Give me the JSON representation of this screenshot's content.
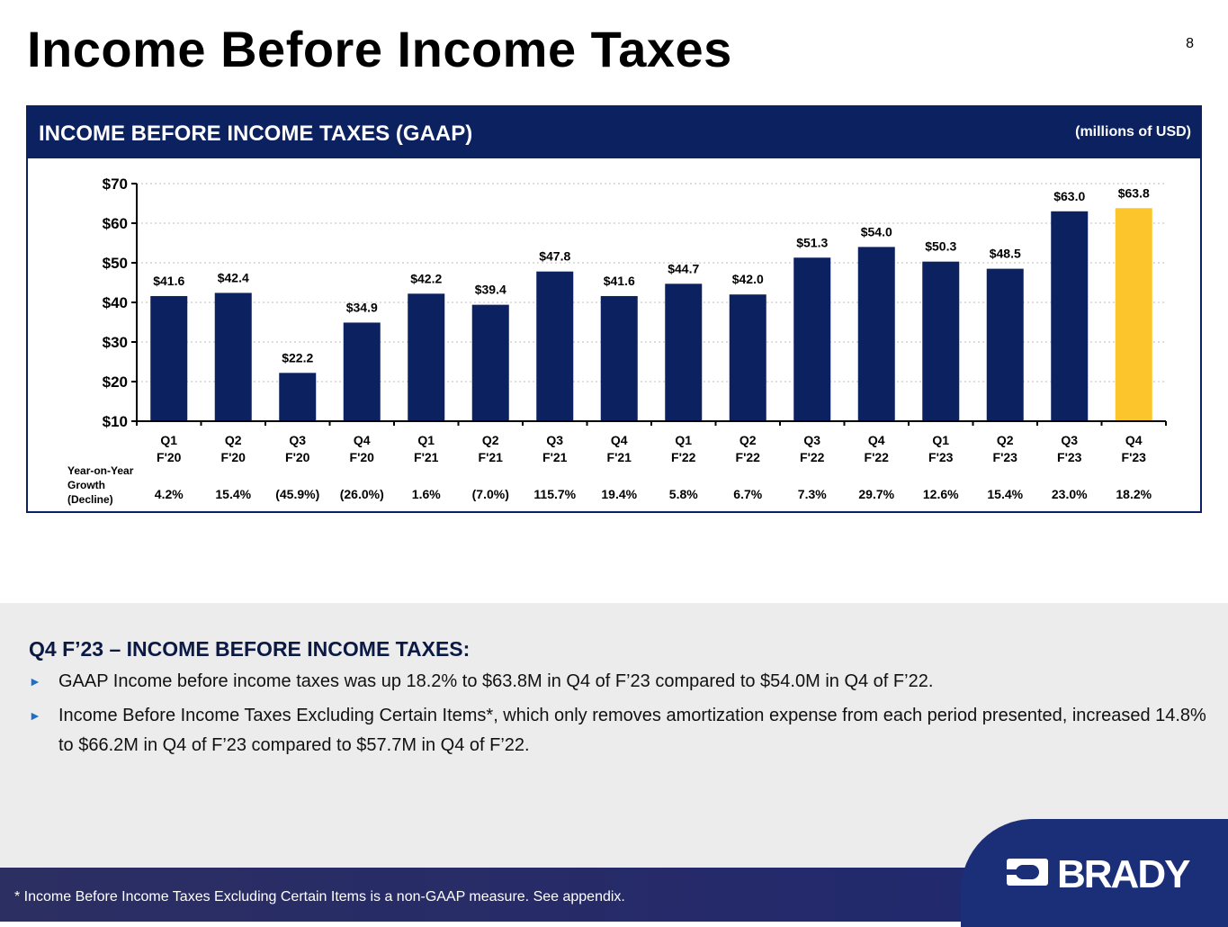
{
  "page": {
    "title": "Income Before Income Taxes",
    "page_number": "8"
  },
  "chart_panel": {
    "title": "INCOME BEFORE INCOME TAXES (GAAP)",
    "unit": "(millions of USD)",
    "growth_label": [
      "Year-on-Year",
      "Growth",
      "(Decline)"
    ]
  },
  "chart_data": {
    "type": "bar",
    "title": "INCOME BEFORE INCOME TAXES (GAAP)",
    "ylabel": "millions of USD",
    "ylim": [
      10,
      70
    ],
    "yticks": [
      10,
      20,
      30,
      40,
      50,
      60,
      70
    ],
    "ytick_labels": [
      "$10",
      "$20",
      "$30",
      "$40",
      "$50",
      "$60",
      "$70"
    ],
    "grid": true,
    "categories": [
      [
        "Q1",
        "F'20"
      ],
      [
        "Q2",
        "F'20"
      ],
      [
        "Q3",
        "F'20"
      ],
      [
        "Q4",
        "F'20"
      ],
      [
        "Q1",
        "F'21"
      ],
      [
        "Q2",
        "F'21"
      ],
      [
        "Q3",
        "F'21"
      ],
      [
        "Q4",
        "F'21"
      ],
      [
        "Q1",
        "F'22"
      ],
      [
        "Q2",
        "F'22"
      ],
      [
        "Q3",
        "F'22"
      ],
      [
        "Q4",
        "F'22"
      ],
      [
        "Q1",
        "F'23"
      ],
      [
        "Q2",
        "F'23"
      ],
      [
        "Q3",
        "F'23"
      ],
      [
        "Q4",
        "F'23"
      ]
    ],
    "values": [
      41.6,
      42.4,
      22.2,
      34.9,
      42.2,
      39.4,
      47.8,
      41.6,
      44.7,
      42.0,
      51.3,
      54.0,
      50.3,
      48.5,
      63.0,
      63.8
    ],
    "value_labels": [
      "$41.6",
      "$42.4",
      "$22.2",
      "$34.9",
      "$42.2",
      "$39.4",
      "$47.8",
      "$41.6",
      "$44.7",
      "$42.0",
      "$51.3",
      "$54.0",
      "$50.3",
      "$48.5",
      "$63.0",
      "$63.8"
    ],
    "growth": [
      "4.2%",
      "15.4%",
      "(45.9%)",
      "(26.0%)",
      "1.6%",
      "(7.0%)",
      "115.7%",
      "19.4%",
      "5.8%",
      "6.7%",
      "7.3%",
      "29.7%",
      "12.6%",
      "15.4%",
      "23.0%",
      "18.2%"
    ],
    "highlight_index": 15,
    "bar_color": "#0b2160",
    "highlight_color": "#fcc52c"
  },
  "commentary": {
    "heading": "Q4 F’23 – INCOME BEFORE INCOME TAXES:",
    "bullets": [
      "GAAP Income before income taxes was up 18.2% to $63.8M in Q4 of F’23 compared to $54.0M in Q4 of F’22.",
      "Income Before Income Taxes Excluding Certain Items*, which only removes amortization expense from each period presented, increased 14.8% to $66.2M in Q4 of F’23 compared to $57.7M in Q4 of F’22."
    ],
    "bullet_icon": "triangle-right-icon"
  },
  "footer": {
    "footnote": "*   Income Before Income Taxes Excluding Certain Items is a non-GAAP measure.  See appendix.",
    "brand": "BRADY",
    "logo_icon": "brady-logo-icon"
  },
  "colors": {
    "navy": "#0b2160",
    "accent_blue": "#1f6fc5",
    "highlight": "#fcc52c",
    "panel_gray": "#ececec"
  }
}
